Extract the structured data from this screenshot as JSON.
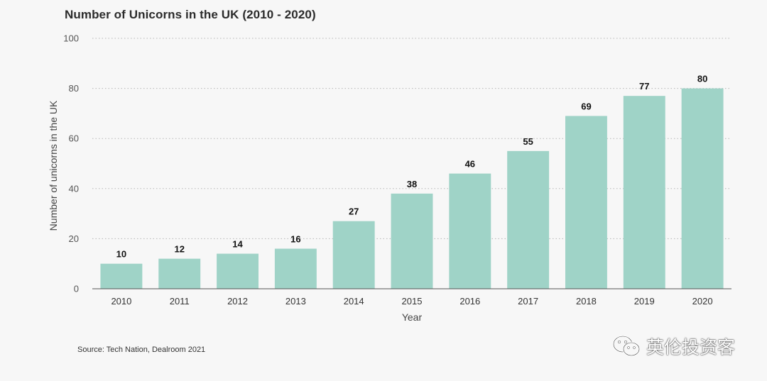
{
  "chart_data": {
    "type": "bar",
    "title": "Number of Unicorns in the UK (2010 - 2020)",
    "xlabel": "Year",
    "ylabel": "Number of unicorns in the UK",
    "categories": [
      "2010",
      "2011",
      "2012",
      "2013",
      "2014",
      "2015",
      "2016",
      "2017",
      "2018",
      "2019",
      "2020"
    ],
    "values": [
      10,
      12,
      14,
      16,
      27,
      38,
      46,
      55,
      69,
      77,
      80
    ],
    "ylim": [
      0,
      100
    ],
    "yticks": [
      0,
      20,
      40,
      60,
      80,
      100
    ],
    "grid": true,
    "bar_color": "#9fd3c7"
  },
  "source": "Source: Tech Nation, Dealroom 2021",
  "watermark": {
    "text": "英伦投资客",
    "icon": "wechat-icon"
  }
}
